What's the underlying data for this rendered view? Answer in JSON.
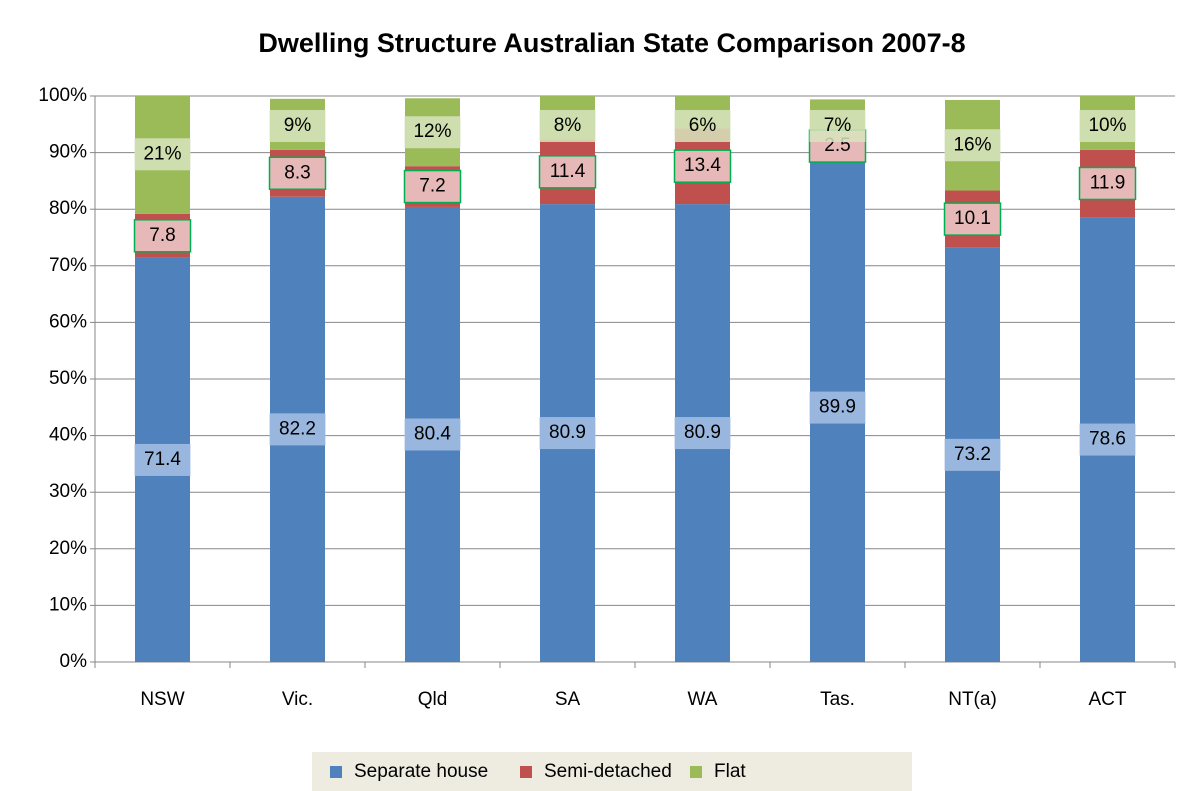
{
  "chart_data": {
    "type": "stacked_bar",
    "title": "Dwelling Structure Australian State Comparison 2007-8",
    "categories": [
      "NSW",
      "Vic.",
      "Qld",
      "SA",
      "WA",
      "Tas.",
      "NT(a)",
      "ACT"
    ],
    "series": [
      {
        "name": "Separate house",
        "color": "#4f81bd",
        "values": [
          71.4,
          82.2,
          80.4,
          80.9,
          80.9,
          89.9,
          73.2,
          78.6
        ]
      },
      {
        "name": "Semi-detached",
        "color": "#c0504d",
        "values": [
          7.8,
          8.3,
          7.2,
          11.4,
          13.4,
          2.5,
          10.1,
          11.9
        ]
      },
      {
        "name": "Flat",
        "color": "#9bbb59",
        "values": [
          21,
          9,
          12,
          8,
          6,
          7,
          16,
          10
        ],
        "value_labels": [
          "21%",
          "9%",
          "12%",
          "8%",
          "6%",
          "7%",
          "16%",
          "10%"
        ]
      }
    ],
    "ylim": [
      0,
      100
    ],
    "yticks": [
      {
        "value": 0,
        "label": "0%"
      },
      {
        "value": 10,
        "label": "10%"
      },
      {
        "value": 20,
        "label": "20%"
      },
      {
        "value": 30,
        "label": "30%"
      },
      {
        "value": 40,
        "label": "40%"
      },
      {
        "value": 50,
        "label": "50%"
      },
      {
        "value": 60,
        "label": "60%"
      },
      {
        "value": 70,
        "label": "70%"
      },
      {
        "value": 80,
        "label": "80%"
      },
      {
        "value": 90,
        "label": "90%"
      },
      {
        "value": 100,
        "label": "100%"
      }
    ],
    "grid": true,
    "legend": "bottom"
  }
}
